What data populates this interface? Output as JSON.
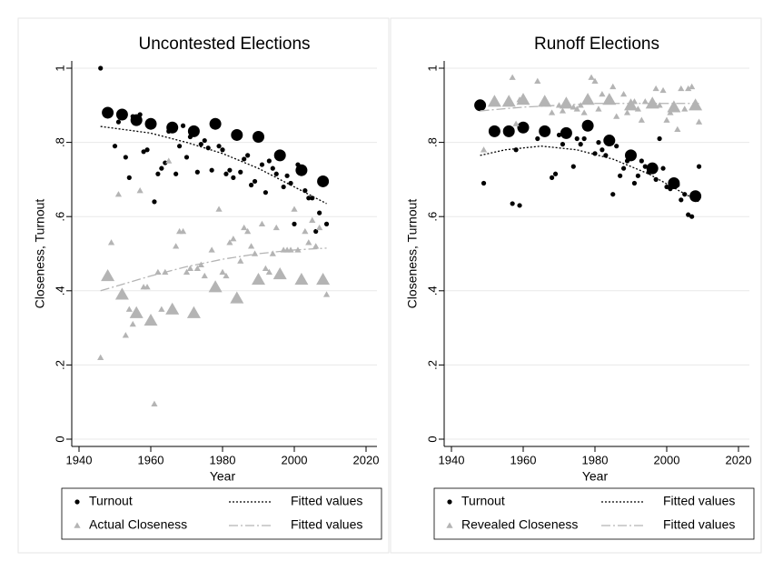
{
  "chart_data": [
    {
      "type": "scatter",
      "title": "Uncontested Elections",
      "x_label": "Year",
      "y_label": "Closeness, Turnout",
      "xlim": [
        1940,
        2020
      ],
      "xticks": [
        1940,
        1960,
        1980,
        2000,
        2020
      ],
      "ylim": [
        0,
        1
      ],
      "yticks": [
        0,
        {
          "value": 0.2,
          "label": ".2"
        },
        {
          "value": 0.4,
          "label": ".4"
        },
        {
          "value": 0.6,
          "label": ".6"
        },
        {
          "value": 0.8,
          "label": ".8"
        },
        1
      ],
      "grid": true,
      "series": [
        {
          "name": "Turnout",
          "color": "#000000",
          "marker": "circle",
          "marker_size": "small",
          "x": [
            1946,
            1950,
            1951,
            1953,
            1954,
            1955,
            1957,
            1958,
            1959,
            1961,
            1962,
            1963,
            1964,
            1965,
            1967,
            1968,
            1969,
            1970,
            1971,
            1973,
            1974,
            1975,
            1976,
            1977,
            1979,
            1980,
            1981,
            1982,
            1983,
            1985,
            1986,
            1987,
            1988,
            1989,
            1991,
            1992,
            1993,
            1994,
            1995,
            1997,
            1998,
            1999,
            2000,
            2001,
            2003,
            2004,
            2005,
            2006,
            2007,
            2009
          ],
          "values": [
            1.0,
            0.79,
            0.855,
            0.76,
            0.705,
            0.87,
            0.875,
            0.775,
            0.78,
            0.64,
            0.715,
            0.73,
            0.745,
            0.83,
            0.715,
            0.79,
            0.845,
            0.76,
            0.815,
            0.72,
            0.795,
            0.805,
            0.785,
            0.725,
            0.79,
            0.78,
            0.715,
            0.725,
            0.705,
            0.72,
            0.755,
            0.765,
            0.685,
            0.695,
            0.74,
            0.665,
            0.75,
            0.73,
            0.715,
            0.68,
            0.71,
            0.69,
            0.58,
            0.74,
            0.67,
            0.65,
            0.65,
            0.56,
            0.61,
            0.58
          ]
        },
        {
          "color": "#000000",
          "marker": "circle",
          "marker_size": "large",
          "x": [
            1948,
            1952,
            1956,
            1960,
            1966,
            1972,
            1978,
            1984,
            1990,
            1996,
            2002,
            2008
          ],
          "values": [
            0.88,
            0.875,
            0.86,
            0.85,
            0.84,
            0.83,
            0.85,
            0.82,
            0.815,
            0.765,
            0.725,
            0.695
          ]
        },
        {
          "name": "Fitted values",
          "color": "#000000",
          "marker": "line",
          "line_style": "dot",
          "x": [
            1946,
            1960,
            1970,
            1980,
            1990,
            2000,
            2009
          ],
          "values": [
            0.843,
            0.825,
            0.8,
            0.77,
            0.73,
            0.68,
            0.635
          ]
        },
        {
          "name": "Actual Closeness",
          "color": "#b4b4b4",
          "marker": "triangle",
          "marker_size": "small",
          "x": [
            1946,
            1949,
            1951,
            1953,
            1954,
            1955,
            1957,
            1958,
            1959,
            1961,
            1962,
            1963,
            1964,
            1965,
            1967,
            1968,
            1969,
            1970,
            1971,
            1973,
            1974,
            1975,
            1977,
            1979,
            1980,
            1981,
            1982,
            1983,
            1985,
            1986,
            1987,
            1988,
            1989,
            1991,
            1992,
            1993,
            1994,
            1995,
            1997,
            1998,
            1999,
            2000,
            2001,
            2003,
            2004,
            2005,
            2006,
            2007,
            2009
          ],
          "values": [
            0.22,
            0.53,
            0.66,
            0.28,
            0.35,
            0.31,
            0.67,
            0.41,
            0.41,
            0.095,
            0.45,
            0.35,
            0.45,
            0.75,
            0.52,
            0.56,
            0.56,
            0.45,
            0.46,
            0.46,
            0.47,
            0.44,
            0.51,
            0.62,
            0.45,
            0.44,
            0.53,
            0.54,
            0.48,
            0.57,
            0.56,
            0.52,
            0.5,
            0.58,
            0.46,
            0.45,
            0.5,
            0.57,
            0.51,
            0.51,
            0.51,
            0.62,
            0.51,
            0.56,
            0.53,
            0.59,
            0.52,
            0.57,
            0.39
          ]
        },
        {
          "color": "#b4b4b4",
          "marker": "triangle",
          "marker_size": "large",
          "x": [
            1948,
            1952,
            1956,
            1960,
            1966,
            1972,
            1978,
            1984,
            1990,
            1996,
            2002,
            2008
          ],
          "values": [
            0.44,
            0.39,
            0.34,
            0.32,
            0.35,
            0.34,
            0.41,
            0.38,
            0.43,
            0.445,
            0.43,
            0.43
          ]
        },
        {
          "name": "Fitted values",
          "color": "#b4b4b4",
          "marker": "line",
          "line_style": "dashdot",
          "x": [
            1946,
            1960,
            1970,
            1980,
            1990,
            2000,
            2009
          ],
          "values": [
            0.4,
            0.44,
            0.465,
            0.485,
            0.5,
            0.51,
            0.515
          ]
        }
      ]
    },
    {
      "type": "scatter",
      "title": "Runoff Elections",
      "x_label": "Year",
      "y_label": "Closeness, Turnout",
      "xlim": [
        1940,
        2020
      ],
      "xticks": [
        1940,
        1960,
        1980,
        2000,
        2020
      ],
      "ylim": [
        0,
        1
      ],
      "yticks": [
        0,
        {
          "value": 0.2,
          "label": ".2"
        },
        {
          "value": 0.4,
          "label": ".4"
        },
        {
          "value": 0.6,
          "label": ".6"
        },
        {
          "value": 0.8,
          "label": ".8"
        },
        1
      ],
      "grid": true,
      "series": [
        {
          "name": "Turnout",
          "color": "#000000",
          "marker": "circle",
          "marker_size": "small",
          "x": [
            1949,
            1957,
            1958,
            1959,
            1964,
            1968,
            1969,
            1970,
            1971,
            1974,
            1975,
            1976,
            1977,
            1980,
            1981,
            1982,
            1983,
            1985,
            1986,
            1987,
            1988,
            1989,
            1991,
            1992,
            1993,
            1994,
            1995,
            1997,
            1998,
            1999,
            2000,
            2001,
            2003,
            2004,
            2005,
            2006,
            2007,
            2009
          ],
          "values": [
            0.69,
            0.635,
            0.78,
            0.63,
            0.81,
            0.705,
            0.715,
            0.82,
            0.795,
            0.735,
            0.81,
            0.795,
            0.81,
            0.77,
            0.8,
            0.78,
            0.765,
            0.66,
            0.79,
            0.71,
            0.73,
            0.75,
            0.69,
            0.71,
            0.75,
            0.735,
            0.72,
            0.7,
            0.81,
            0.73,
            0.68,
            0.675,
            0.685,
            0.645,
            0.66,
            0.605,
            0.6,
            0.735
          ]
        },
        {
          "color": "#000000",
          "marker": "circle",
          "marker_size": "large",
          "x": [
            1948,
            1952,
            1956,
            1960,
            1966,
            1972,
            1978,
            1984,
            1990,
            1996,
            2002,
            2008
          ],
          "values": [
            0.9,
            0.83,
            0.83,
            0.84,
            0.83,
            0.825,
            0.845,
            0.805,
            0.765,
            0.73,
            0.69,
            0.655
          ]
        },
        {
          "name": "Fitted values",
          "color": "#000000",
          "marker": "line",
          "line_style": "dot",
          "x": [
            1948,
            1955,
            1965,
            1975,
            1985,
            1995,
            2009
          ],
          "values": [
            0.765,
            0.78,
            0.79,
            0.78,
            0.755,
            0.715,
            0.64
          ]
        },
        {
          "name": "Revealed Closeness",
          "color": "#b4b4b4",
          "marker": "triangle",
          "marker_size": "small",
          "x": [
            1949,
            1957,
            1958,
            1959,
            1964,
            1968,
            1970,
            1971,
            1974,
            1975,
            1976,
            1977,
            1979,
            1980,
            1981,
            1982,
            1985,
            1986,
            1988,
            1989,
            1991,
            1992,
            1993,
            1994,
            1997,
            1998,
            1999,
            2000,
            2001,
            2003,
            2004,
            2005,
            2006,
            2007,
            2009
          ],
          "values": [
            0.78,
            0.975,
            0.85,
            0.915,
            0.965,
            0.88,
            0.9,
            0.885,
            0.895,
            0.89,
            0.9,
            0.88,
            0.975,
            0.965,
            0.89,
            0.93,
            0.95,
            0.87,
            0.93,
            0.88,
            0.91,
            0.89,
            0.86,
            0.91,
            0.945,
            0.9,
            0.94,
            0.86,
            0.88,
            0.835,
            0.945,
            0.89,
            0.945,
            0.95,
            0.855
          ]
        },
        {
          "color": "#b4b4b4",
          "marker": "triangle",
          "marker_size": "large",
          "x": [
            1952,
            1956,
            1960,
            1966,
            1972,
            1978,
            1984,
            1990,
            1996,
            2002,
            2008
          ],
          "values": [
            0.91,
            0.91,
            0.915,
            0.91,
            0.905,
            0.915,
            0.915,
            0.9,
            0.905,
            0.895,
            0.9
          ]
        },
        {
          "name": "Fitted values",
          "color": "#b4b4b4",
          "marker": "line",
          "line_style": "dashdot",
          "x": [
            1948,
            1960,
            1980,
            2000,
            2009
          ],
          "values": [
            0.885,
            0.895,
            0.905,
            0.905,
            0.905
          ]
        }
      ]
    }
  ]
}
